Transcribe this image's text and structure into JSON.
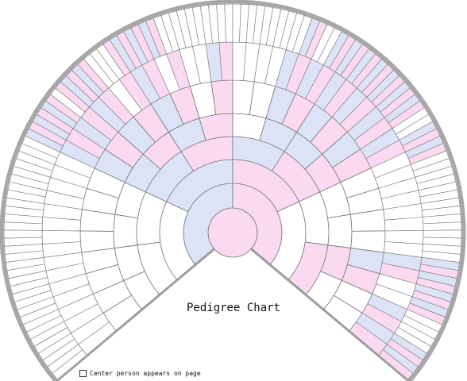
{
  "title": "Pedigree Chart",
  "center_note": "Center person appears on page",
  "colors": {
    "paternal_blue": "#dde3f7",
    "maternal_pink": "#fad9f1",
    "empty": "#ffffff",
    "outline": "#777777",
    "border": "#a7a7a7"
  },
  "generations": [
    [
      "p"
    ],
    [
      "b",
      "p"
    ],
    [
      "e",
      "b",
      "p",
      "e"
    ],
    [
      "e",
      "e",
      "b",
      "p",
      "b",
      "p",
      "e",
      "p"
    ],
    [
      "e",
      "e",
      "e",
      "e",
      "b",
      "p",
      "b",
      "p",
      "e",
      "b",
      "b",
      "p",
      "e",
      "e",
      "p",
      "e"
    ],
    [
      "e",
      "e",
      "e",
      "e",
      "e",
      "e",
      "e",
      "e",
      "b",
      "p",
      "b",
      "p",
      "b",
      "p",
      "e",
      "p",
      "e",
      "e",
      "b",
      "p",
      "b",
      "p",
      "b",
      "p",
      "e",
      "e",
      "e",
      "e",
      "b",
      "p",
      "e",
      "e"
    ],
    [
      "e",
      "e",
      "e",
      "e",
      "e",
      "e",
      "e",
      "e",
      "e",
      "e",
      "e",
      "e",
      "e",
      "e",
      "e",
      "e",
      "b",
      "p",
      "b",
      "p",
      "b",
      "p",
      "e",
      "p",
      "b",
      "p",
      "e",
      "p",
      "e",
      "e",
      "b",
      "p",
      "e",
      "e",
      "e",
      "e",
      "b",
      "p",
      "b",
      "p",
      "b",
      "p",
      "b",
      "p",
      "b",
      "p",
      "b",
      "p",
      "e",
      "e",
      "e",
      "e",
      "e",
      "e",
      "e",
      "e",
      "b",
      "p",
      "e",
      "e",
      "b",
      "p",
      "b",
      "p"
    ],
    [
      "e",
      "e",
      "e",
      "e",
      "e",
      "e",
      "e",
      "e",
      "e",
      "e",
      "e",
      "e",
      "e",
      "e",
      "e",
      "e",
      "e",
      "e",
      "e",
      "e",
      "e",
      "e",
      "e",
      "e",
      "e",
      "e",
      "e",
      "e",
      "e",
      "e",
      "e",
      "e",
      "b",
      "p",
      "b",
      "p",
      "b",
      "p",
      "e",
      "p",
      "b",
      "p",
      "b",
      "p",
      "e",
      "e",
      "e",
      "p",
      "b",
      "p",
      "b",
      "p",
      "b",
      "p",
      "e",
      "e",
      "e",
      "e",
      "e",
      "e",
      "e",
      "e",
      "e",
      "e",
      "e",
      "e",
      "e",
      "e",
      "e",
      "e",
      "e",
      "e",
      "e",
      "e",
      "b",
      "p",
      "e",
      "e",
      "b",
      "p",
      "b",
      "p",
      "b",
      "p",
      "b",
      "p",
      "b",
      "p",
      "b",
      "p",
      "b",
      "p",
      "e",
      "e",
      "b",
      "p",
      "b",
      "p",
      "e",
      "e",
      "e",
      "e",
      "e",
      "e",
      "e",
      "e",
      "e",
      "e",
      "e",
      "e",
      "e",
      "e",
      "b",
      "p",
      "b",
      "p",
      "b",
      "p",
      "b",
      "p",
      "e",
      "e",
      "e",
      "e",
      "b",
      "p",
      "b",
      "p"
    ]
  ]
}
